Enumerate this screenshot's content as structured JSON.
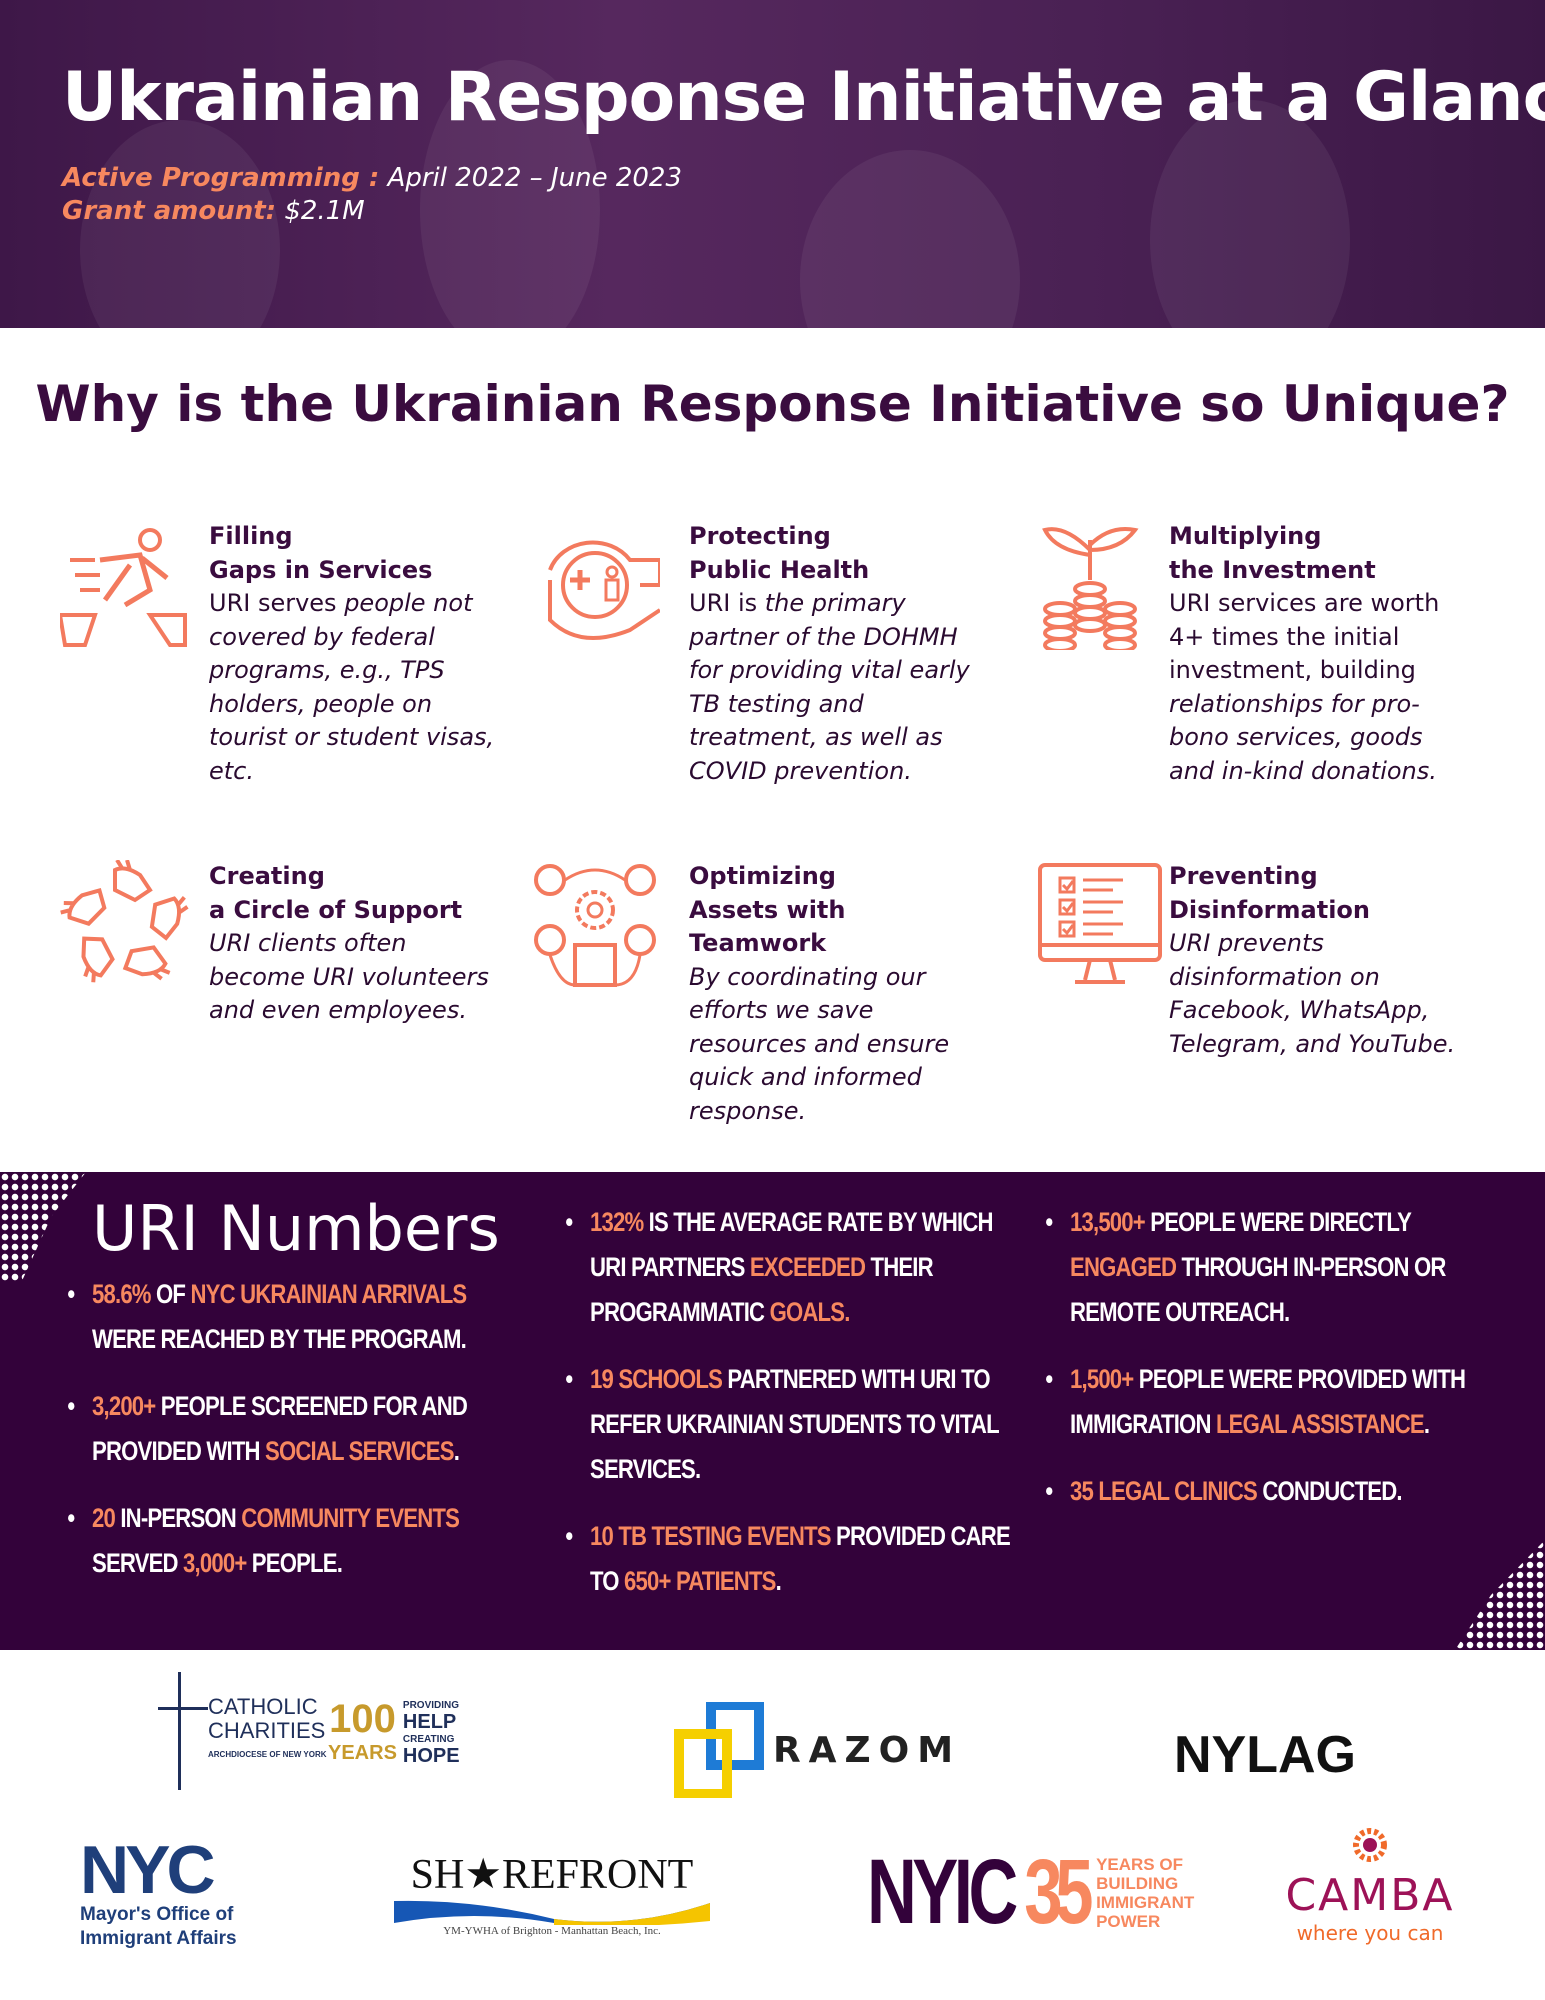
{
  "header": {
    "title": "Ukrainian Response Initiative at a Glance",
    "programming_label": "Active Programming :",
    "programming_value": "April 2022 – June 2023",
    "grant_label": "Grant amount:",
    "grant_value": "$2.1M"
  },
  "why": {
    "title": "Why is the Ukrainian Response Initiative so Unique?"
  },
  "features": [
    {
      "icon": "running-over-gap-icon",
      "title1": "Filling",
      "title2": "Gaps in Services",
      "pre": "URI serves ",
      "em": "people not covered by federal programs, e.g., TPS holders, people on tourist or student visas, etc.",
      "post": ""
    },
    {
      "icon": "hand-protecting-health-icon",
      "title1": "Protecting",
      "title2": "Public Health",
      "pre": "URI is ",
      "em": "the primary partner of the DOHMH for providing vital early TB testing and treatment, as well as COVID prevention.",
      "post": ""
    },
    {
      "icon": "coins-plant-icon",
      "title1": "Multiplying",
      "title2": "the Investment",
      "pre": "URI services are worth 4+ times the initial investment, building ",
      "em": "relationships for pro-bono services, goods and in-kind donations.",
      "post": ""
    },
    {
      "icon": "circle-of-hands-icon",
      "title1": "Creating",
      "title2": "a Circle of Support",
      "pre": "",
      "em": "URI clients often become URI volunteers and even employees.",
      "post": ""
    },
    {
      "icon": "teamwork-assets-icon",
      "title1": "Optimizing",
      "title2": "Assets with Teamwork",
      "pre": "",
      "em": "By coordinating our efforts we save resources and ensure quick and informed response.",
      "post": ""
    },
    {
      "icon": "monitor-checklist-icon",
      "title1": "Preventing",
      "title2": "Disinformation",
      "pre": "",
      "em": "URI prevents disinformation on Facebook, WhatsApp, Telegram, and YouTube.",
      "post": ""
    }
  ],
  "numbers": {
    "title": "URI Numbers",
    "columns": [
      [
        [
          [
            "58.6%",
            1
          ],
          [
            " of ",
            0
          ],
          [
            "NYC Ukrainian arrivals",
            1
          ],
          [
            " were reached by the program.",
            0
          ]
        ],
        [
          [
            "3,200+",
            1
          ],
          [
            "  people screened for and provided with ",
            0
          ],
          [
            "social services",
            1
          ],
          [
            ".",
            0
          ]
        ],
        [
          [
            "20",
            1
          ],
          [
            " in-person ",
            0
          ],
          [
            "community events",
            1
          ],
          [
            " served ",
            0
          ],
          [
            "3,000+",
            1
          ],
          [
            " people.",
            0
          ]
        ]
      ],
      [
        [
          [
            "132%",
            1
          ],
          [
            " is the average rate by which URI partners ",
            0
          ],
          [
            "exceeded",
            1
          ],
          [
            " their programmatic ",
            0
          ],
          [
            "goals.",
            1
          ]
        ],
        [
          [
            "19 schools",
            1
          ],
          [
            " partnered with URI to refer Ukrainian students to vital services.",
            0
          ]
        ],
        [
          [
            "10 TB testing events",
            1
          ],
          [
            " provided care to ",
            0
          ],
          [
            "650+ patients",
            1
          ],
          [
            ".",
            0
          ]
        ]
      ],
      [
        [
          [
            "13,500+",
            1
          ],
          [
            " people were directly ",
            0
          ],
          [
            "engaged",
            1
          ],
          [
            " through in-person or remote outreach.",
            0
          ]
        ],
        [
          [
            "1,500+",
            1
          ],
          [
            "  people were provided with immigration ",
            0
          ],
          [
            "legal assistance",
            1
          ],
          [
            ".",
            0
          ]
        ],
        [
          [
            "35 legal clinics",
            1
          ],
          [
            " conducted.",
            0
          ]
        ]
      ]
    ]
  },
  "logos": {
    "catholic": "CATHOLIC CHARITIES",
    "catholic_sub": "ARCHDIOCESE OF NEW YORK",
    "catholic_100": "100",
    "catholic_years": "YEARS",
    "catholic_tag1": "PROVIDING",
    "catholic_tag2": "HELP",
    "catholic_tag3": "CREATING",
    "catholic_tag4": "HOPE",
    "razom": "RAZOM",
    "nylag": "NYLAG",
    "nyc": "NYC",
    "nyc_sub": "Mayor's Office of Immigrant Affairs",
    "shorefront": "SH★REFRONT",
    "shorefront_sub": "YM-YWHA of Brighton - Manhattan Beach, Inc.",
    "nyic": "NYIC",
    "nyic_35": "35",
    "nyic_tag": "YEARS OF BUILDING IMMIGRANT POWER",
    "camba": "CAMBA",
    "camba_tag": "where you can"
  },
  "colors": {
    "accent": "#f7885f",
    "purple": "#33023a"
  }
}
